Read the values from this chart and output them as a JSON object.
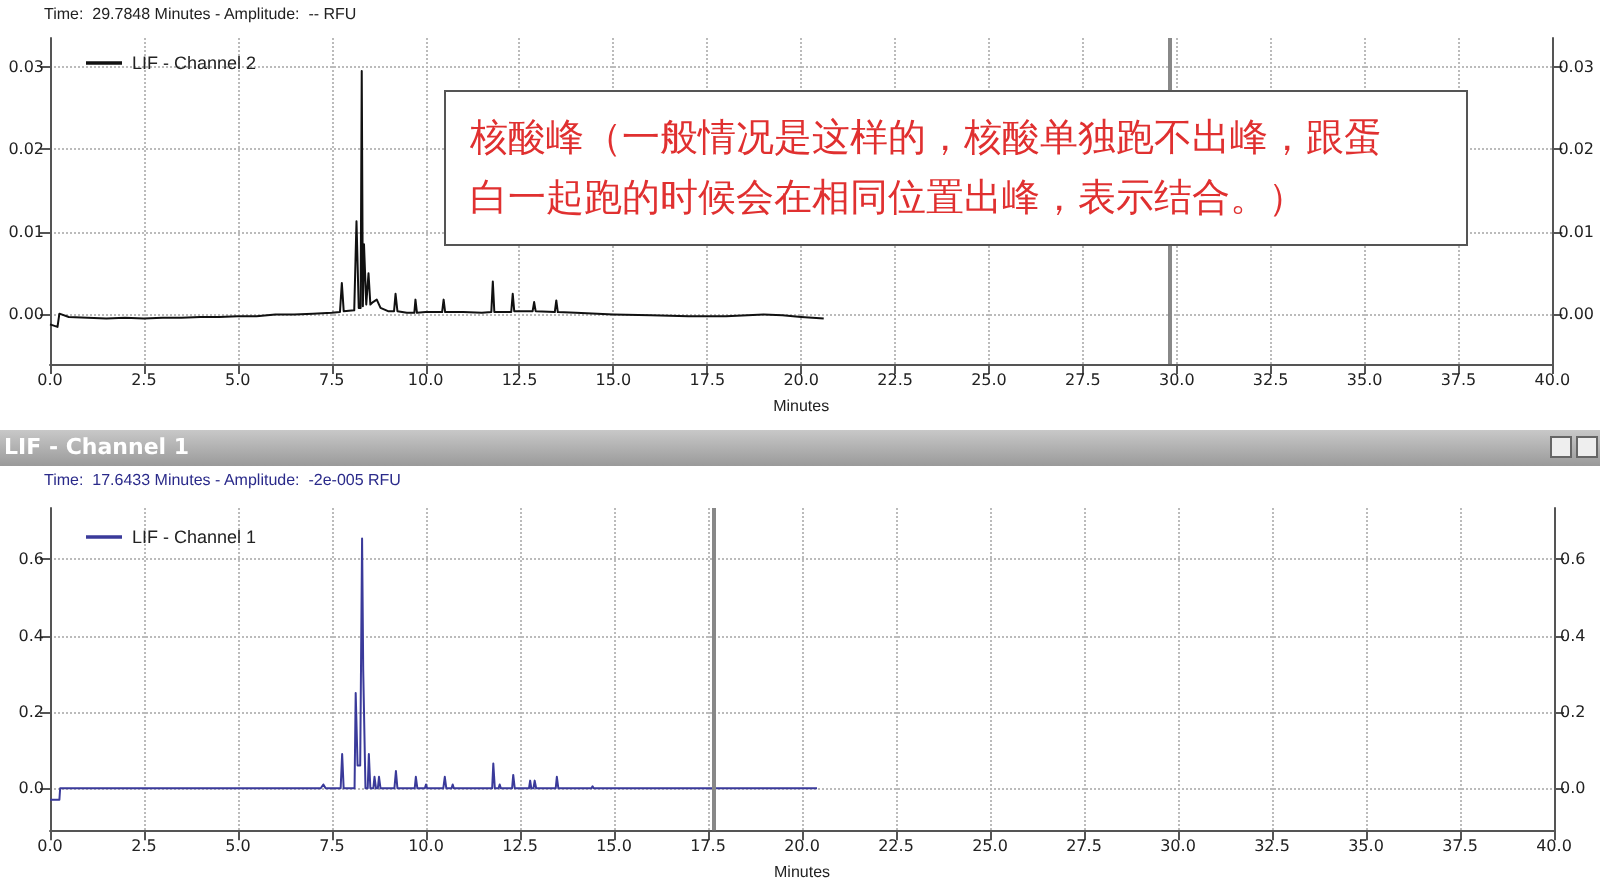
{
  "chart_data": [
    {
      "type": "line",
      "subtitle": "Time:  29.7848 Minutes - Amplitude:  -- RFU",
      "xlabel": "Minutes",
      "legend": "top left",
      "grid": true,
      "marker": "none",
      "line_style": "solid",
      "annotations": [
        "核酸峰（一般情况是这样的，核酸单独跑不出峰，跟蛋白一起跑的时候会在相同位置出峰，表示结合。）"
      ],
      "xlim": [
        0,
        40
      ],
      "xticks": [
        {
          "value": 0,
          "label": "0.0"
        },
        {
          "value": 2.5,
          "label": "2.5"
        },
        {
          "value": 5,
          "label": "5.0"
        },
        {
          "value": 7.5,
          "label": "7.5"
        },
        {
          "value": 10,
          "label": "10.0"
        },
        {
          "value": 12.5,
          "label": "12.5"
        },
        {
          "value": 15,
          "label": "15.0"
        },
        {
          "value": 17.5,
          "label": "17.5"
        },
        {
          "value": 20,
          "label": "20.0"
        },
        {
          "value": 22.5,
          "label": "22.5"
        },
        {
          "value": 25,
          "label": "25.0"
        },
        {
          "value": 27.5,
          "label": "27.5"
        },
        {
          "value": 30,
          "label": "30.0"
        },
        {
          "value": 32.5,
          "label": "32.5"
        },
        {
          "value": 35,
          "label": "35.0"
        },
        {
          "value": 37.5,
          "label": "37.5"
        },
        {
          "value": 40,
          "label": "40.0"
        }
      ],
      "ylim": [
        -0.006,
        0.0335
      ],
      "yticks": [
        {
          "value": 0,
          "label": "0.00"
        },
        {
          "value": 0.01,
          "label": "0.01"
        },
        {
          "value": 0.02,
          "label": "0.02"
        },
        {
          "value": 0.03,
          "label": "0.03"
        }
      ],
      "y2lim": [
        -0.006,
        0.0335
      ],
      "y2ticks": [
        {
          "value": 0,
          "label": "0.00"
        },
        {
          "value": 0.01,
          "label": "0.01"
        },
        {
          "value": 0.02,
          "label": "0.02"
        },
        {
          "value": 0.03,
          "label": "0.03"
        }
      ],
      "ref_lines": [
        {
          "axis": "x",
          "value": 29.78,
          "color": "#888888"
        }
      ],
      "series": [
        {
          "name": "LIF - Channel 2",
          "color": "#111111",
          "x": [
            0,
            0.2,
            0.25,
            0.5,
            1,
            1.5,
            2,
            2.5,
            3,
            3.5,
            4,
            4.5,
            5,
            5.5,
            6,
            6.5,
            7,
            7.5,
            7.72,
            7.77,
            7.82,
            8.1,
            8.16,
            8.22,
            8.27,
            8.3,
            8.33,
            8.36,
            8.42,
            8.48,
            8.53,
            8.6,
            8.7,
            8.8,
            9,
            9.16,
            9.2,
            9.25,
            9.5,
            9.7,
            9.73,
            9.77,
            10,
            10.44,
            10.48,
            10.52,
            11,
            11.5,
            11.75,
            11.79,
            11.83,
            12.28,
            12.32,
            12.36,
            12.85,
            12.89,
            12.93,
            13.44,
            13.48,
            13.52,
            14,
            15,
            16,
            17,
            18,
            19,
            19.5,
            20,
            20.6
          ],
          "values": [
            -0.0012,
            -0.0015,
            0.0001,
            -0.0003,
            -0.0004,
            -0.0005,
            -0.0004,
            -0.0005,
            -0.0004,
            -0.0004,
            -0.0003,
            -0.0003,
            -0.0002,
            -0.0002,
            0,
            0,
            0.0001,
            0.0002,
            0.0003,
            0.0038,
            0.0004,
            0.0005,
            0.0113,
            0.0008,
            0.0008,
            0.0295,
            0.001,
            0.0085,
            0.0012,
            0.005,
            0.0012,
            0.0015,
            0.0018,
            0.0008,
            0.0004,
            0.0004,
            0.0025,
            0.0004,
            0.0002,
            0.0002,
            0.0018,
            0.0002,
            0.0003,
            0.0003,
            0.0018,
            0.0003,
            0.0003,
            0.0002,
            0.0003,
            0.004,
            0.0003,
            0.0003,
            0.0025,
            0.0004,
            0.0004,
            0.0015,
            0.0004,
            0.0003,
            0.0017,
            0.0003,
            0.0002,
            0,
            -0.0001,
            -0.0002,
            -0.0002,
            0,
            -0.0001,
            -0.0003,
            -0.0005
          ]
        }
      ]
    },
    {
      "type": "line",
      "title": "LIF - Channel 1",
      "subtitle": "Time:  17.6433 Minutes - Amplitude:  -2e-005 RFU",
      "xlabel": "Minutes",
      "legend": "top left",
      "grid": true,
      "marker": "none",
      "line_style": "solid",
      "xlim": [
        0,
        40
      ],
      "xticks": [
        {
          "value": 0,
          "label": "0.0"
        },
        {
          "value": 2.5,
          "label": "2.5"
        },
        {
          "value": 5,
          "label": "5.0"
        },
        {
          "value": 7.5,
          "label": "7.5"
        },
        {
          "value": 10,
          "label": "10.0"
        },
        {
          "value": 12.5,
          "label": "12.5"
        },
        {
          "value": 15,
          "label": "15.0"
        },
        {
          "value": 17.5,
          "label": "17.5"
        },
        {
          "value": 20,
          "label": "20.0"
        },
        {
          "value": 22.5,
          "label": "22.5"
        },
        {
          "value": 25,
          "label": "25.0"
        },
        {
          "value": 27.5,
          "label": "27.5"
        },
        {
          "value": 30,
          "label": "30.0"
        },
        {
          "value": 32.5,
          "label": "32.5"
        },
        {
          "value": 35,
          "label": "35.0"
        },
        {
          "value": 37.5,
          "label": "37.5"
        },
        {
          "value": 40,
          "label": "40.0"
        }
      ],
      "ylim": [
        -0.11,
        0.735
      ],
      "yticks": [
        {
          "value": 0,
          "label": "0.0"
        },
        {
          "value": 0.2,
          "label": "0.2"
        },
        {
          "value": 0.4,
          "label": "0.4"
        },
        {
          "value": 0.6,
          "label": "0.6"
        }
      ],
      "y2lim": [
        -0.11,
        0.735
      ],
      "y2ticks": [
        {
          "value": 0,
          "label": "0.0"
        },
        {
          "value": 0.2,
          "label": "0.2"
        },
        {
          "value": 0.4,
          "label": "0.4"
        },
        {
          "value": 0.6,
          "label": "0.6"
        }
      ],
      "ref_lines": [
        {
          "axis": "x",
          "value": 17.64,
          "color": "#888888"
        }
      ],
      "series": [
        {
          "name": "LIF - Channel 1",
          "color": "#3a3a9a",
          "x": [
            0,
            0.25,
            0.27,
            7.2,
            7.27,
            7.33,
            7.73,
            7.77,
            7.81,
            8.1,
            8.13,
            8.18,
            8.25,
            8.3,
            8.33,
            8.39,
            8.45,
            8.48,
            8.52,
            8.6,
            8.63,
            8.67,
            8.72,
            8.75,
            8.79,
            9.16,
            9.2,
            9.24,
            9.7,
            9.73,
            9.77,
            9.97,
            10,
            10.03,
            10.46,
            10.5,
            10.54,
            10.68,
            10.71,
            10.74,
            11.76,
            11.79,
            11.83,
            11.93,
            11.96,
            11.99,
            12.29,
            12.32,
            12.36,
            12.74,
            12.77,
            12.8,
            12.86,
            12.89,
            12.93,
            13.45,
            13.48,
            13.52,
            14.4,
            14.43,
            14.46,
            20.4
          ],
          "values": [
            -0.03,
            -0.03,
            0,
            0,
            0.01,
            0,
            0,
            0.09,
            0,
            0,
            0.25,
            0.06,
            0.06,
            0.655,
            0.31,
            0,
            0,
            0.09,
            0,
            0,
            0.03,
            0,
            0,
            0.03,
            0,
            0,
            0.045,
            0,
            0,
            0.03,
            0,
            0,
            0.01,
            0,
            0,
            0.03,
            0,
            0,
            0.01,
            0,
            0,
            0.065,
            0,
            0,
            0.01,
            0,
            0,
            0.035,
            0,
            0,
            0.02,
            0,
            0,
            0.02,
            0,
            0,
            0.03,
            0,
            0,
            0.005,
            0,
            0
          ]
        }
      ]
    }
  ]
}
